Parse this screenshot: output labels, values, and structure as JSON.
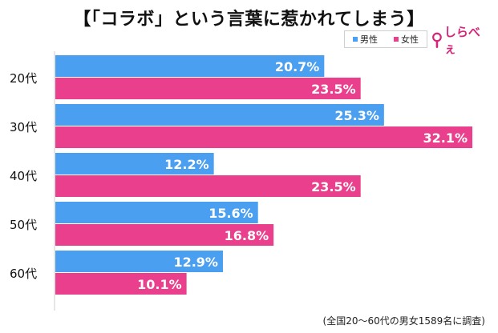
{
  "title": "【「コラボ」という言葉に惹かれてしまう】",
  "legend": {
    "male": "男性",
    "female": "女性"
  },
  "brand": {
    "name": "しらべぇ",
    "color": "#d6247a"
  },
  "footnote": "(全国20〜60代の男女1589名に調査)",
  "colors": {
    "male": "#4a9ff0",
    "female": "#ea3f8c"
  },
  "chart_data": {
    "type": "bar",
    "orientation": "horizontal",
    "categories": [
      "20代",
      "30代",
      "40代",
      "50代",
      "60代"
    ],
    "series": [
      {
        "name": "男性",
        "values": [
          20.7,
          25.3,
          12.2,
          15.6,
          12.9
        ]
      },
      {
        "name": "女性",
        "values": [
          23.5,
          32.1,
          23.5,
          16.8,
          10.1
        ]
      }
    ],
    "value_suffix": "%",
    "xlim": [
      0,
      40
    ],
    "title": "【「コラボ」という言葉に惹かれてしまう】",
    "legend_position": "top-right",
    "grid": false
  }
}
